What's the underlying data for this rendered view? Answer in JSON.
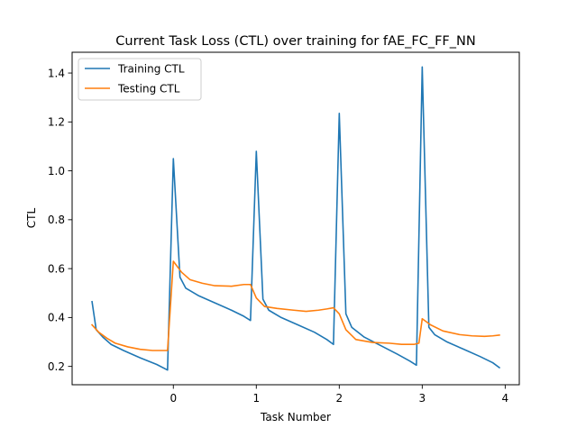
{
  "chart_data": {
    "type": "line",
    "title": "Current Task Loss (CTL) over training for fAE_FC_FF_NN",
    "xlabel": "Task Number",
    "ylabel": "CTL",
    "xlim": [
      -1.22,
      4.17
    ],
    "ylim": [
      0.125,
      1.485
    ],
    "x_ticks": [
      0,
      1,
      2,
      3,
      4
    ],
    "x_tick_labels": [
      "0",
      "1",
      "2",
      "3",
      "4"
    ],
    "y_ticks": [
      0.2,
      0.4,
      0.6,
      0.8,
      1.0,
      1.2,
      1.4
    ],
    "y_tick_labels": [
      "0.2",
      "0.4",
      "0.6",
      "0.8",
      "1.0",
      "1.2",
      "1.4"
    ],
    "grid": false,
    "legend_position": "upper-left",
    "series": [
      {
        "name": "Training CTL",
        "color": "#1f77b4",
        "points": [
          [
            -0.98,
            0.465
          ],
          [
            -0.93,
            0.35
          ],
          [
            -0.85,
            0.32
          ],
          [
            -0.75,
            0.29
          ],
          [
            -0.6,
            0.265
          ],
          [
            -0.4,
            0.235
          ],
          [
            -0.2,
            0.208
          ],
          [
            -0.07,
            0.185
          ],
          [
            0.0,
            1.05
          ],
          [
            0.08,
            0.565
          ],
          [
            0.15,
            0.52
          ],
          [
            0.3,
            0.49
          ],
          [
            0.5,
            0.46
          ],
          [
            0.7,
            0.43
          ],
          [
            0.85,
            0.405
          ],
          [
            0.93,
            0.388
          ],
          [
            1.0,
            1.08
          ],
          [
            1.08,
            0.475
          ],
          [
            1.15,
            0.43
          ],
          [
            1.3,
            0.4
          ],
          [
            1.5,
            0.37
          ],
          [
            1.7,
            0.34
          ],
          [
            1.85,
            0.31
          ],
          [
            1.93,
            0.29
          ],
          [
            2.0,
            1.235
          ],
          [
            2.08,
            0.415
          ],
          [
            2.15,
            0.36
          ],
          [
            2.3,
            0.32
          ],
          [
            2.5,
            0.285
          ],
          [
            2.7,
            0.25
          ],
          [
            2.85,
            0.222
          ],
          [
            2.93,
            0.205
          ],
          [
            3.0,
            1.425
          ],
          [
            3.08,
            0.36
          ],
          [
            3.15,
            0.33
          ],
          [
            3.3,
            0.3
          ],
          [
            3.5,
            0.27
          ],
          [
            3.7,
            0.24
          ],
          [
            3.85,
            0.215
          ],
          [
            3.93,
            0.195
          ]
        ]
      },
      {
        "name": "Testing CTL",
        "color": "#ff7f0e",
        "points": [
          [
            -0.98,
            0.37
          ],
          [
            -0.9,
            0.34
          ],
          [
            -0.8,
            0.315
          ],
          [
            -0.7,
            0.295
          ],
          [
            -0.55,
            0.28
          ],
          [
            -0.4,
            0.27
          ],
          [
            -0.25,
            0.265
          ],
          [
            -0.07,
            0.265
          ],
          [
            0.0,
            0.63
          ],
          [
            0.1,
            0.585
          ],
          [
            0.2,
            0.555
          ],
          [
            0.35,
            0.54
          ],
          [
            0.5,
            0.53
          ],
          [
            0.7,
            0.528
          ],
          [
            0.85,
            0.535
          ],
          [
            0.93,
            0.535
          ],
          [
            1.0,
            0.48
          ],
          [
            1.1,
            0.445
          ],
          [
            1.25,
            0.437
          ],
          [
            1.45,
            0.43
          ],
          [
            1.6,
            0.425
          ],
          [
            1.75,
            0.43
          ],
          [
            1.85,
            0.435
          ],
          [
            1.93,
            0.44
          ],
          [
            2.0,
            0.415
          ],
          [
            2.08,
            0.35
          ],
          [
            2.2,
            0.31
          ],
          [
            2.4,
            0.298
          ],
          [
            2.6,
            0.295
          ],
          [
            2.75,
            0.29
          ],
          [
            2.9,
            0.29
          ],
          [
            2.96,
            0.295
          ],
          [
            3.0,
            0.395
          ],
          [
            3.1,
            0.37
          ],
          [
            3.25,
            0.345
          ],
          [
            3.45,
            0.33
          ],
          [
            3.6,
            0.325
          ],
          [
            3.75,
            0.323
          ],
          [
            3.85,
            0.325
          ],
          [
            3.93,
            0.328
          ]
        ]
      }
    ]
  }
}
